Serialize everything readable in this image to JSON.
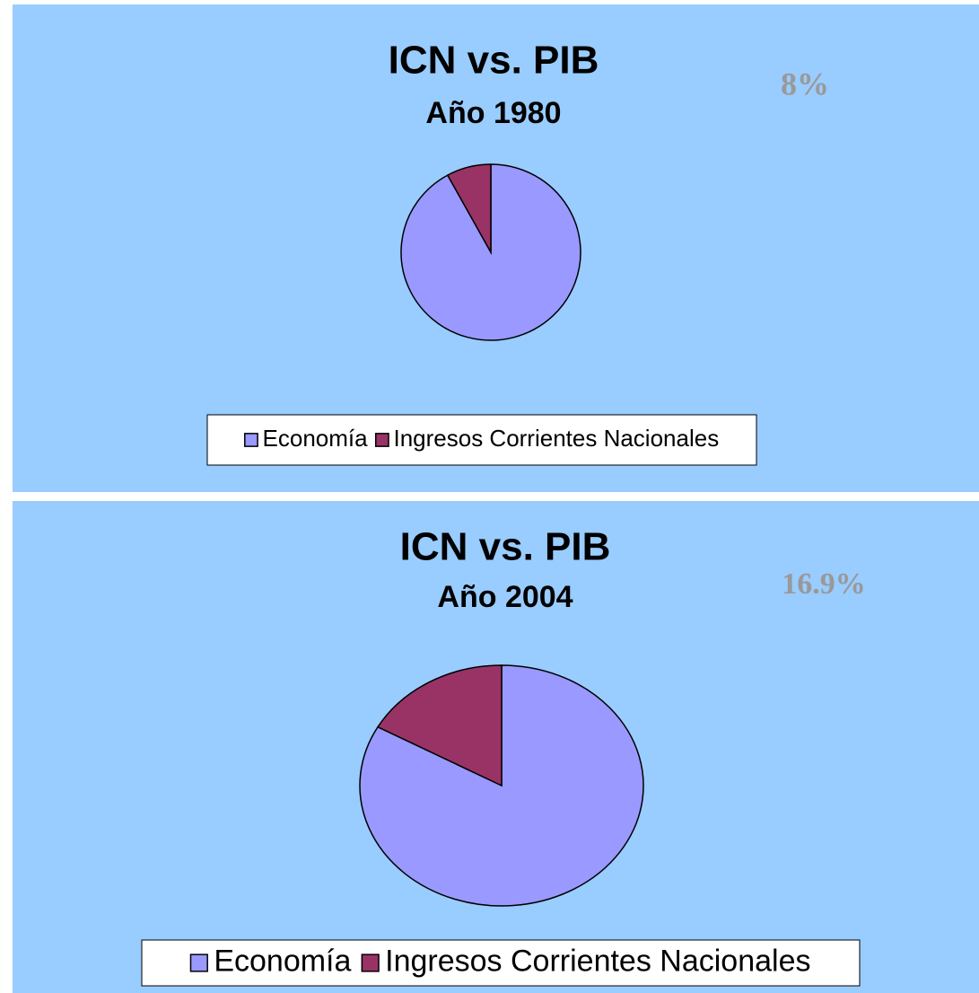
{
  "chart_data": [
    {
      "type": "pie",
      "title": "ICN  vs.  PIB",
      "subtitle": "Año 1980",
      "categories": [
        "Economía",
        "Ingresos Corrientes Nacionales"
      ],
      "values": [
        92,
        8
      ],
      "value_labels": [
        null,
        "8%"
      ],
      "colors": [
        "#9999ff",
        "#993366"
      ],
      "background": "#99ccff",
      "legend": "bottom"
    },
    {
      "type": "pie",
      "title": "ICN  vs.  PIB",
      "subtitle": "Año 2004",
      "categories": [
        "Economía",
        "Ingresos Corrientes Nacionales"
      ],
      "values": [
        83.1,
        16.9
      ],
      "value_labels": [
        null,
        "16.9%"
      ],
      "colors": [
        "#9999ff",
        "#993366"
      ],
      "background": "#99ccff",
      "legend": "bottom"
    }
  ]
}
